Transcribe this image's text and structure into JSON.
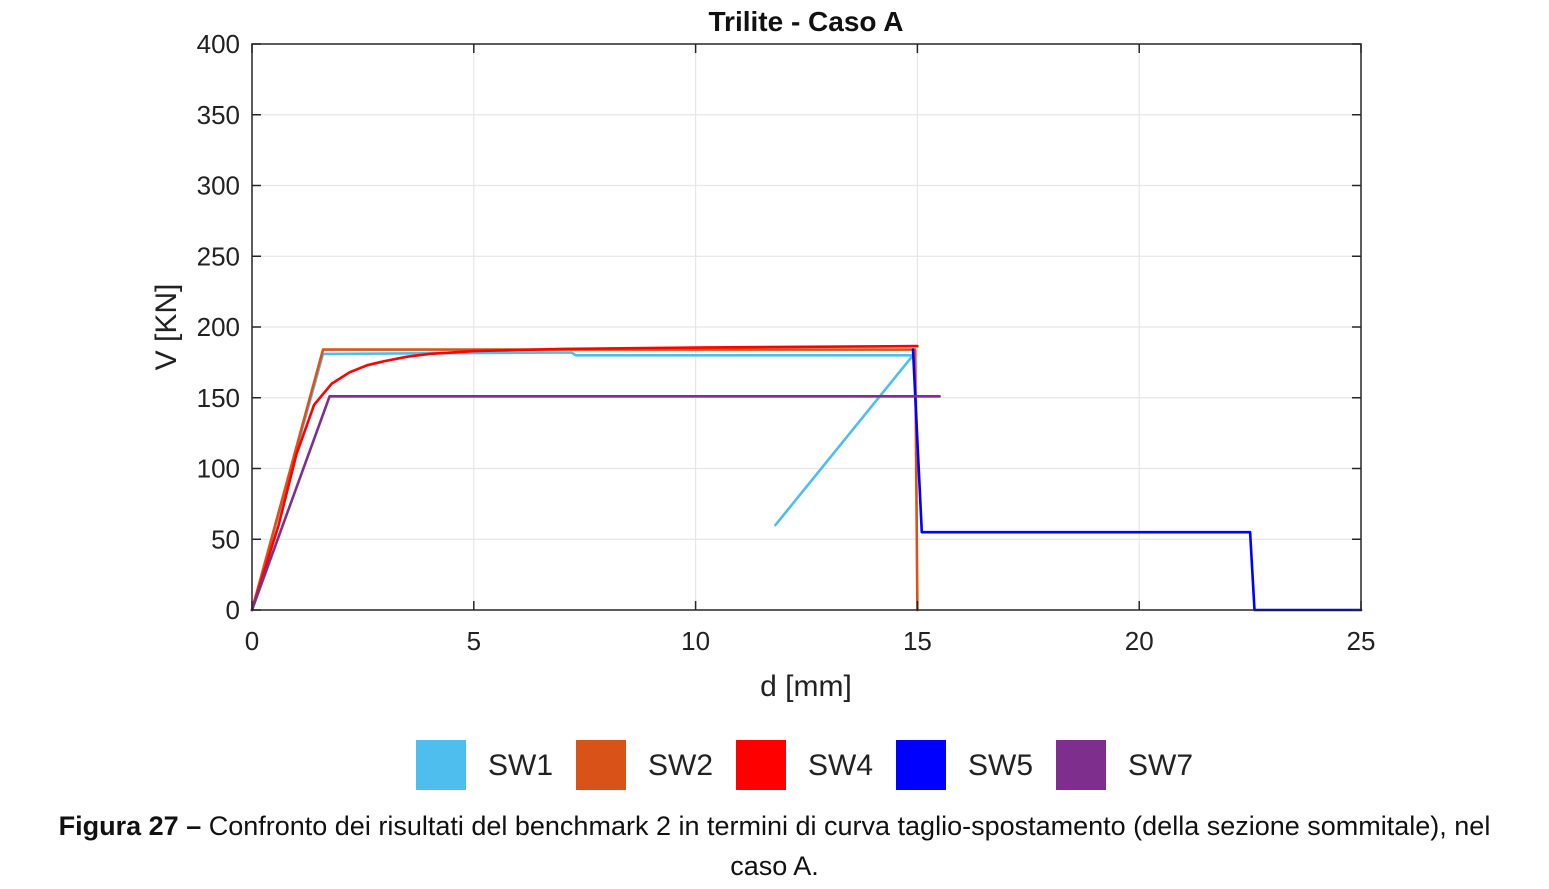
{
  "chart_data": {
    "type": "line",
    "title": "Trilite - Caso A",
    "xlabel": "d [mm]",
    "ylabel": "V [KN]",
    "xlim": [
      0,
      25
    ],
    "ylim": [
      0,
      400
    ],
    "xticks": [
      0,
      5,
      10,
      15,
      20,
      25
    ],
    "yticks": [
      0,
      50,
      100,
      150,
      200,
      250,
      300,
      350,
      400
    ],
    "grid": true,
    "legend_position": "bottom",
    "series": [
      {
        "name": "SW1",
        "color": "#4DBEEE",
        "points": [
          [
            0,
            0
          ],
          [
            1.6,
            181
          ],
          [
            7.2,
            182
          ],
          [
            7.3,
            180
          ],
          [
            14.9,
            180
          ],
          [
            11.8,
            60
          ]
        ]
      },
      {
        "name": "SW2",
        "color": "#D95319",
        "points": [
          [
            0,
            0
          ],
          [
            1.6,
            184
          ],
          [
            14.95,
            184
          ],
          [
            15.0,
            0
          ]
        ]
      },
      {
        "name": "SW4",
        "color": "#FF0000",
        "points": [
          [
            0,
            0
          ],
          [
            0.6,
            60
          ],
          [
            1.0,
            110
          ],
          [
            1.4,
            145
          ],
          [
            1.8,
            160
          ],
          [
            2.2,
            168
          ],
          [
            2.6,
            173
          ],
          [
            3.0,
            176
          ],
          [
            3.5,
            179
          ],
          [
            4.0,
            181
          ],
          [
            5.0,
            183
          ],
          [
            7.0,
            184.5
          ],
          [
            10.0,
            185.5
          ],
          [
            15.0,
            186.5
          ]
        ]
      },
      {
        "name": "SW5",
        "color": "#0000FF",
        "points": [
          [
            14.9,
            184
          ],
          [
            15.1,
            55
          ],
          [
            22.5,
            55
          ],
          [
            22.6,
            0
          ],
          [
            25,
            0
          ]
        ]
      },
      {
        "name": "SW7",
        "color": "#7E2F8E",
        "points": [
          [
            0,
            0
          ],
          [
            1.75,
            151
          ],
          [
            15.5,
            151
          ]
        ]
      }
    ]
  },
  "caption": {
    "label": "Figura 27 –",
    "text": " Confronto dei risultati del benchmark 2 in termini di curva taglio-spostamento (della sezione sommitale), nel caso A."
  }
}
